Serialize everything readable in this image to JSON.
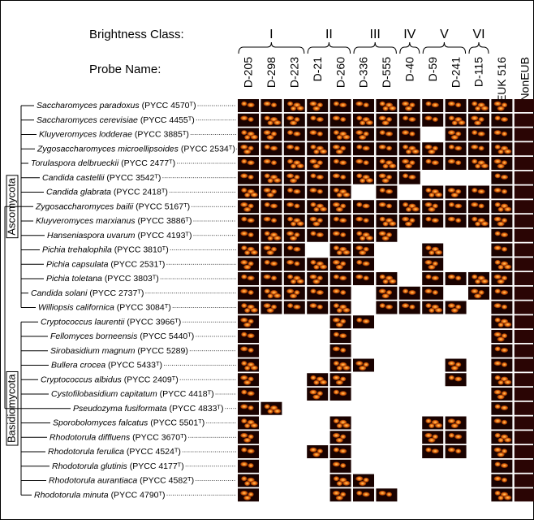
{
  "header": {
    "brightness_label": "Brightness Class:",
    "probe_label": "Probe Name:",
    "classes": [
      {
        "label": "I",
        "span": [
          0,
          2
        ]
      },
      {
        "label": "II",
        "span": [
          3,
          4
        ]
      },
      {
        "label": "III",
        "span": [
          5,
          6
        ]
      },
      {
        "label": "IV",
        "span": [
          7,
          7
        ]
      },
      {
        "label": "V",
        "span": [
          8,
          9
        ]
      },
      {
        "label": "VI",
        "span": [
          10,
          10
        ]
      }
    ],
    "probes": [
      "D-205",
      "D-298",
      "D-223",
      "D-21",
      "D-260",
      "D-336",
      "D-555",
      "D-40",
      "D-59",
      "D-241",
      "D-115",
      "EUK 516",
      "NonEUB"
    ]
  },
  "groups": [
    {
      "label": "Ascomycota",
      "rows": [
        0,
        14
      ]
    },
    {
      "label": "Basidiomycota",
      "rows": [
        15,
        27
      ]
    }
  ],
  "rows": [
    {
      "name": "Saccharomyces paradoxus",
      "strain": "(PYCC 4570ᵀ)",
      "images": [
        true,
        true,
        true,
        true,
        true,
        true,
        true,
        true,
        true,
        true,
        true,
        true
      ]
    },
    {
      "name": "Saccharomyces cerevisiae",
      "strain": "(PYCC 4455ᵀ)",
      "images": [
        true,
        true,
        true,
        true,
        true,
        true,
        true,
        true,
        true,
        true,
        true,
        true
      ]
    },
    {
      "name": "Kluyveromyces lodderae",
      "strain": "(PYCC 3885ᵀ)",
      "images": [
        true,
        true,
        true,
        true,
        true,
        true,
        true,
        true,
        false,
        true,
        true,
        true
      ]
    },
    {
      "name": "Zygosaccharomyces microellipsoides",
      "strain": "(PYCC 2534ᵀ)",
      "images": [
        true,
        true,
        true,
        true,
        true,
        true,
        true,
        true,
        true,
        true,
        true,
        true
      ]
    },
    {
      "name": "Torulaspora delbrueckii",
      "strain": "(PYCC 2477ᵀ)",
      "images": [
        true,
        true,
        true,
        true,
        true,
        true,
        true,
        true,
        true,
        true,
        true,
        true
      ]
    },
    {
      "name": "Candida castellii",
      "strain": "(PYCC 3542ᵀ)",
      "images": [
        true,
        true,
        true,
        true,
        true,
        true,
        true,
        true,
        false,
        false,
        false,
        true
      ]
    },
    {
      "name": "Candida glabrata",
      "strain": "(PYCC 2418ᵀ)",
      "images": [
        true,
        true,
        true,
        true,
        true,
        false,
        true,
        false,
        true,
        true,
        true,
        true
      ]
    },
    {
      "name": "Zygosaccharomyces bailii",
      "strain": "(PYCC 5167ᵀ)",
      "images": [
        true,
        true,
        true,
        true,
        true,
        true,
        true,
        true,
        true,
        true,
        true,
        true
      ]
    },
    {
      "name": "Kluyveromyces marxianus",
      "strain": "(PYCC 3886ᵀ)",
      "images": [
        true,
        true,
        true,
        true,
        true,
        true,
        true,
        true,
        true,
        true,
        true,
        true
      ]
    },
    {
      "name": "Hanseniaspora uvarum",
      "strain": "(PYCC 4193ᵀ)",
      "images": [
        true,
        true,
        true,
        true,
        true,
        true,
        true,
        false,
        false,
        false,
        false,
        true
      ]
    },
    {
      "name": "Pichia trehalophila",
      "strain": "(PYCC 3810ᵀ)",
      "images": [
        true,
        true,
        true,
        false,
        true,
        true,
        false,
        false,
        true,
        false,
        false,
        true
      ]
    },
    {
      "name": "Pichia capsulata",
      "strain": "(PYCC 2531ᵀ)",
      "images": [
        true,
        true,
        true,
        true,
        true,
        true,
        false,
        false,
        true,
        false,
        false,
        true
      ]
    },
    {
      "name": "Pichia toletana",
      "strain": "(PYCC 3803ᵀ)",
      "images": [
        true,
        true,
        true,
        true,
        true,
        true,
        true,
        false,
        true,
        true,
        true,
        true
      ]
    },
    {
      "name": "Candida solani",
      "strain": "(PYCC 2737ᵀ)",
      "images": [
        true,
        true,
        true,
        true,
        true,
        false,
        true,
        true,
        true,
        false,
        true,
        true
      ]
    },
    {
      "name": "Williopsis californica",
      "strain": "(PYCC 3084ᵀ)",
      "images": [
        true,
        true,
        true,
        true,
        true,
        false,
        true,
        true,
        true,
        true,
        false,
        true
      ]
    },
    {
      "name": "Cryptococcus laurentii",
      "strain": "(PYCC 3966ᵀ)",
      "images": [
        true,
        false,
        false,
        false,
        true,
        true,
        false,
        false,
        false,
        false,
        false,
        true
      ]
    },
    {
      "name": "Fellomyces borneensis",
      "strain": "(PYCC 5440ᵀ)",
      "images": [
        true,
        false,
        false,
        false,
        true,
        false,
        false,
        false,
        false,
        false,
        false,
        true
      ]
    },
    {
      "name": "Sirobasidium magnum",
      "strain": "(PYCC 5289)",
      "images": [
        true,
        false,
        false,
        false,
        true,
        false,
        false,
        false,
        false,
        false,
        false,
        true
      ]
    },
    {
      "name": "Bullera crocea",
      "strain": "(PYCC 5433ᵀ)",
      "images": [
        true,
        false,
        false,
        false,
        true,
        true,
        false,
        false,
        false,
        true,
        false,
        true
      ]
    },
    {
      "name": "Cryptococcus albidus",
      "strain": "(PYCC 2409ᵀ)",
      "images": [
        true,
        false,
        false,
        true,
        true,
        false,
        false,
        false,
        false,
        true,
        false,
        true
      ]
    },
    {
      "name": "Cystofilobasidium capitatum",
      "strain": "(PYCC 4418ᵀ)",
      "images": [
        true,
        false,
        false,
        true,
        true,
        false,
        false,
        false,
        false,
        false,
        false,
        true
      ]
    },
    {
      "name": "Pseudozyma fusiformata",
      "strain": "(PYCC 4833ᵀ)",
      "images": [
        true,
        true,
        false,
        false,
        false,
        false,
        false,
        false,
        false,
        false,
        false,
        true
      ]
    },
    {
      "name": "Sporobolomyces falcatus",
      "strain": "(PYCC 5501ᵀ)",
      "images": [
        true,
        false,
        false,
        false,
        true,
        false,
        false,
        false,
        true,
        true,
        false,
        true
      ]
    },
    {
      "name": "Rhodotorula diffluens",
      "strain": "(PYCC 3670ᵀ)",
      "images": [
        true,
        false,
        false,
        false,
        true,
        false,
        false,
        false,
        true,
        true,
        false,
        true
      ]
    },
    {
      "name": "Rhodotorula ferulica",
      "strain": "(PYCC 4524ᵀ)",
      "images": [
        true,
        false,
        false,
        true,
        true,
        false,
        false,
        false,
        true,
        true,
        false,
        true
      ]
    },
    {
      "name": "Rhodotorula glutinis",
      "strain": "(PYCC 4177ᵀ)",
      "images": [
        true,
        false,
        false,
        false,
        true,
        false,
        false,
        false,
        false,
        false,
        false,
        true
      ]
    },
    {
      "name": "Rhodotorula aurantiaca",
      "strain": "(PYCC 4582ᵀ)",
      "images": [
        true,
        false,
        false,
        false,
        true,
        true,
        false,
        false,
        false,
        false,
        false,
        true
      ]
    },
    {
      "name": "Rhodotorula minuta",
      "strain": "(PYCC 4790ᵀ)",
      "images": [
        true,
        false,
        false,
        false,
        true,
        true,
        true,
        false,
        false,
        false,
        false,
        true
      ]
    }
  ]
}
